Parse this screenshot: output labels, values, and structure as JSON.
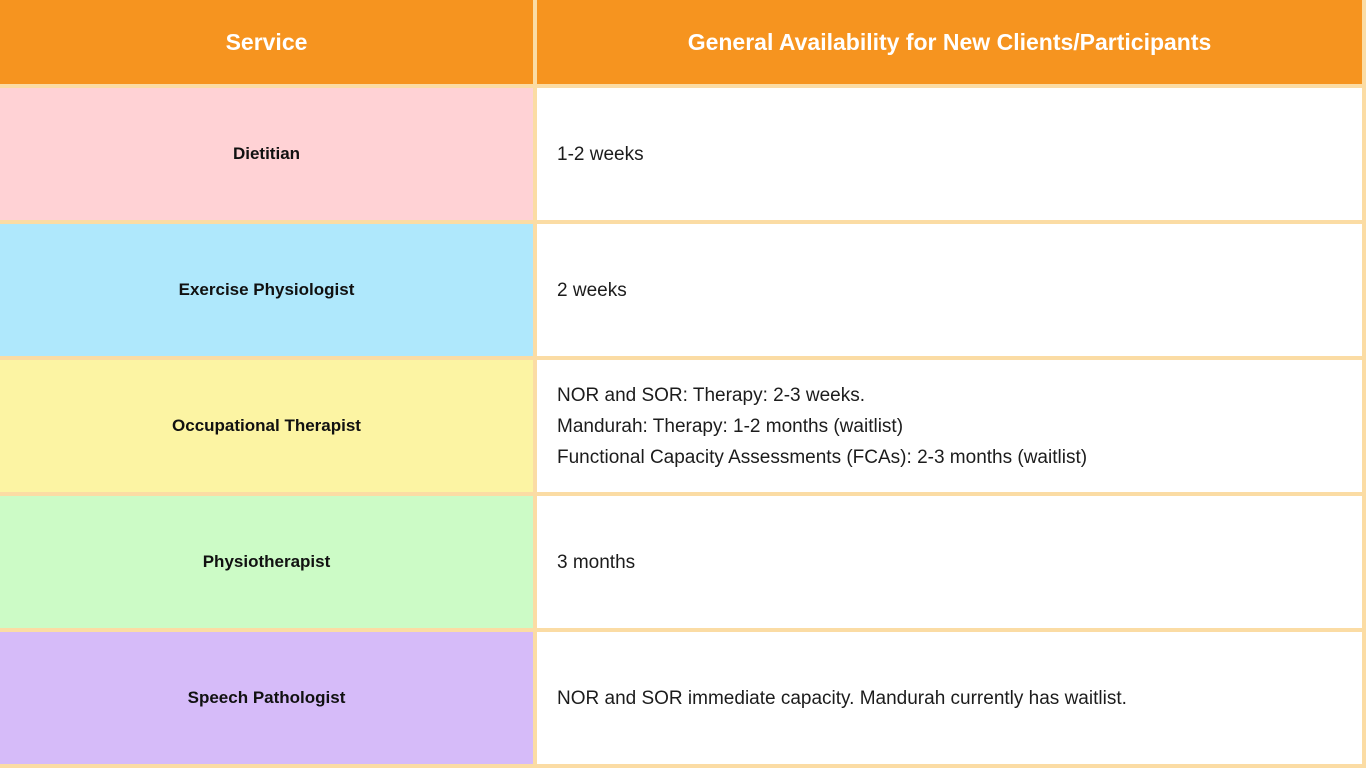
{
  "chart_data": {
    "type": "table",
    "columns": [
      "Service",
      "General Availability for New Clients/Participants"
    ],
    "rows": [
      {
        "service": "Dietitian",
        "availability_lines": [
          "1-2 weeks"
        ]
      },
      {
        "service": "Exercise Physiologist",
        "availability_lines": [
          "2 weeks"
        ]
      },
      {
        "service": "Occupational Therapist",
        "availability_lines": [
          "NOR and SOR: Therapy: 2-3 weeks.",
          "Mandurah: Therapy: 1-2 months (waitlist)",
          "Functional Capacity Assessments (FCAs): 2-3 months (waitlist)"
        ]
      },
      {
        "service": "Physiotherapist",
        "availability_lines": [
          "3 months"
        ]
      },
      {
        "service": "Speech Pathologist",
        "availability_lines": [
          "NOR and SOR immediate capacity. Mandurah currently has waitlist."
        ]
      }
    ]
  },
  "style": {
    "header_background": "#F6941F",
    "header_text_color": "#FFFFFF",
    "border_color": "#FBDCA4",
    "row_colors": [
      "#FFD2D5",
      "#AFE8FC",
      "#FCF4A3",
      "#CCFBC6",
      "#D6BBF9"
    ],
    "body_cell_background": "#FFFFFF",
    "body_text_color": "#1C1C1C"
  }
}
